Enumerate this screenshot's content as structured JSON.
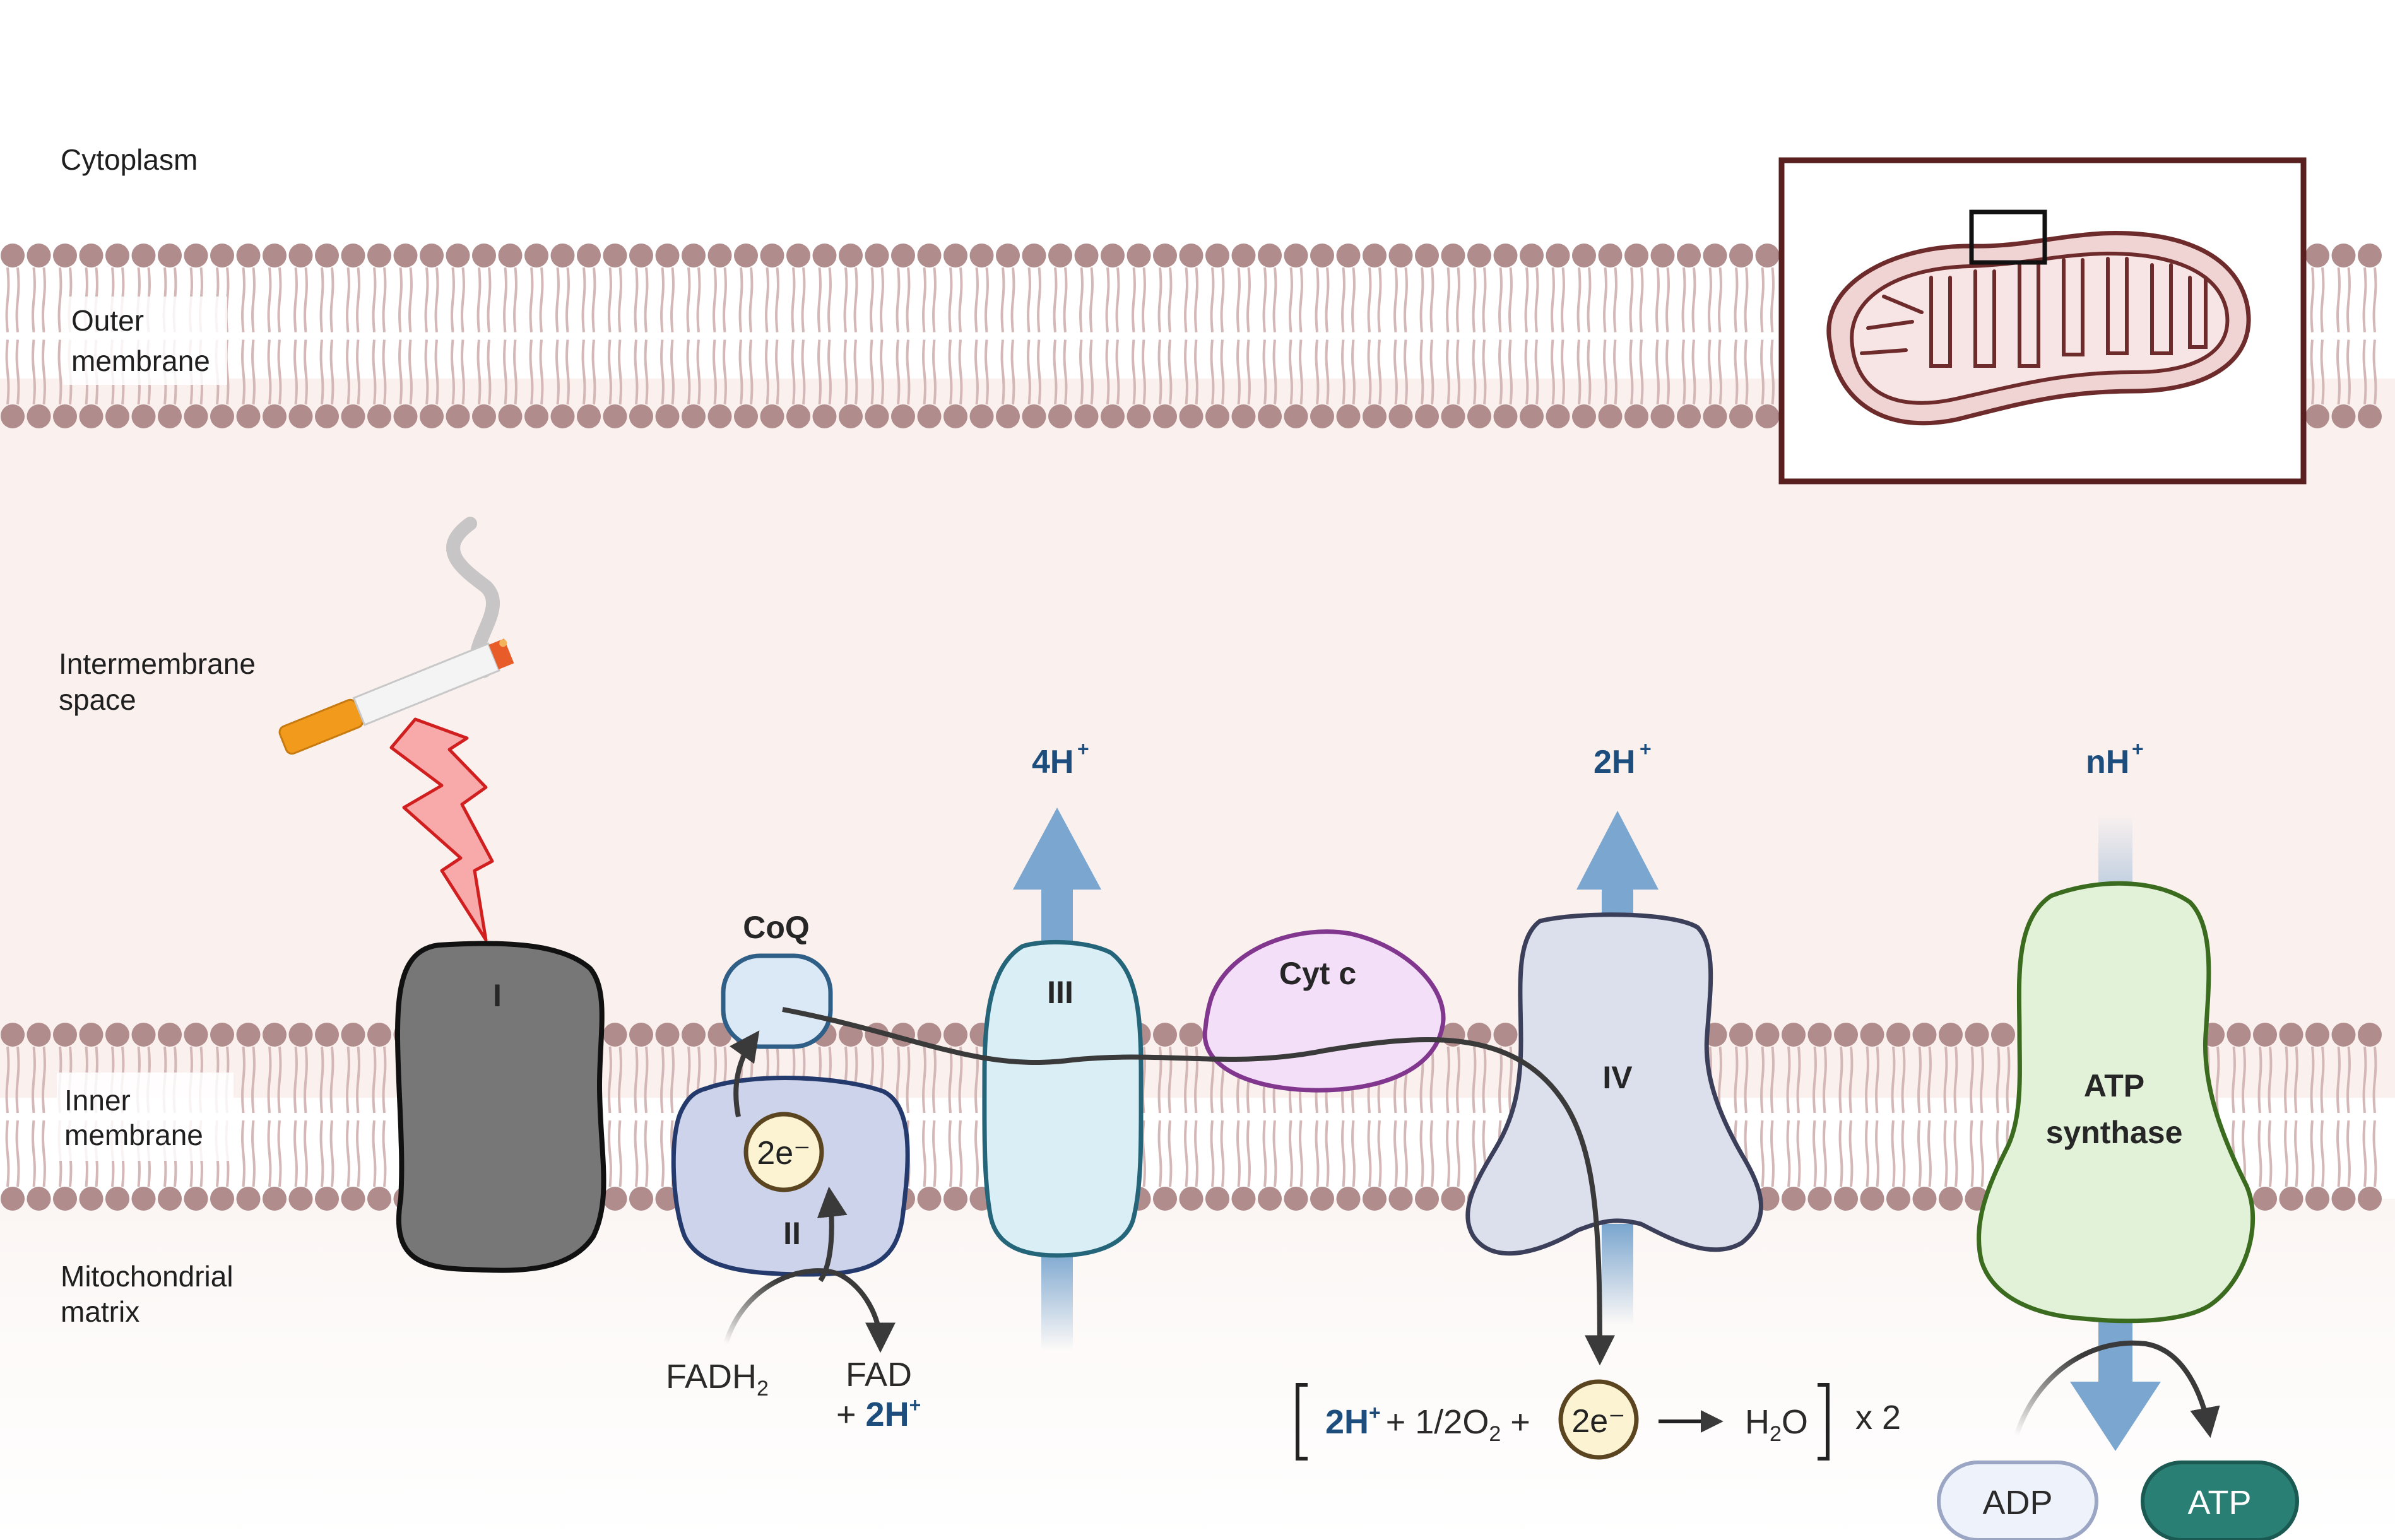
{
  "regions": {
    "cytoplasm": "Cytoplasm",
    "outer_membrane": [
      "Outer",
      "membrane"
    ],
    "intermembrane_space": [
      "Intermembrane",
      "space"
    ],
    "inner_membrane": [
      "Inner",
      "membrane"
    ],
    "matrix": [
      "Mitochondrial",
      "matrix"
    ]
  },
  "complexes": {
    "complex_i": "I",
    "complex_ii": "II",
    "complex_iii": "III",
    "complex_iv": "IV",
    "coq": "CoQ",
    "cyt_c": "Cyt c",
    "atp_synthase": [
      "ATP",
      "synthase"
    ]
  },
  "protons": {
    "complex_iii": {
      "count": "4H",
      "sup": "+"
    },
    "complex_iv": {
      "count": "2H",
      "sup": "+"
    },
    "atp_synthase": {
      "count": "nH",
      "sup": "+"
    }
  },
  "complex_ii_reaction": {
    "electrons": "2e⁻",
    "substrate": "FADH",
    "substrate_sub": "2",
    "product": "FAD",
    "product_plus": "+ ",
    "product_protons": "2H",
    "product_protons_sup": "+"
  },
  "oxygen_reaction": {
    "protons": "2H",
    "protons_sup": "+",
    "oxygen": "+ 1/2O",
    "oxygen_sub": "2",
    "plus": " +",
    "electrons": "2e⁻",
    "water_h": "H",
    "water_sub": "2",
    "water_o": "O",
    "multiplier": "x 2"
  },
  "atp_reaction": {
    "adp": "ADP",
    "atp": "ATP"
  },
  "icons": [
    "cigarette-icon",
    "lightning-icon",
    "mitochondrion-icon"
  ],
  "colors": {
    "membrane_head": "#b08c8c",
    "membrane_tail": "#d4b7b7",
    "intermembrane_fill": "#faf1ef",
    "complex_i": "#777777",
    "complex_ii": "#cdd3ea",
    "complex_iii": "#daeef5",
    "complex_iv": "#dcdfec",
    "cyt_c": "#f3e0f8",
    "atp_synthase": "#e2f2d8",
    "proton_arrow": "#7aa6cf",
    "proton_text": "#1c4d7c",
    "lightning": "#f7a3a3",
    "atp_badge": "#2a7f75"
  }
}
